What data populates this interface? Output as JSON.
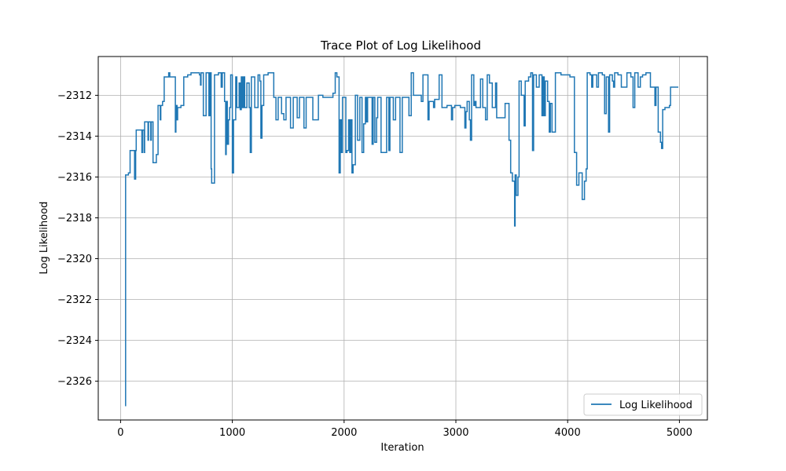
{
  "chart_data": {
    "type": "line",
    "title": "Trace Plot of Log Likelihood",
    "xlabel": "Iteration",
    "ylabel": "Log Likelihood",
    "xlim": [
      -200,
      5250
    ],
    "ylim": [
      -2327.9,
      -2310.1
    ],
    "xticks": [
      0,
      1000,
      2000,
      3000,
      4000,
      5000
    ],
    "xtick_labels": [
      "0",
      "1000",
      "2000",
      "3000",
      "4000",
      "5000"
    ],
    "yticks": [
      -2326,
      -2324,
      -2322,
      -2320,
      -2318,
      -2316,
      -2314,
      -2312
    ],
    "ytick_labels": [
      "−2326",
      "−2324",
      "−2322",
      "−2320",
      "−2318",
      "−2316",
      "−2314",
      "−2312"
    ],
    "grid": true,
    "legend": {
      "position": "lower-right",
      "entries": [
        "Log Likelihood"
      ]
    },
    "series": [
      {
        "name": "Log Likelihood",
        "color": "#1f77b4",
        "steps": [
          [
            40,
            -2327.2
          ],
          [
            45,
            -2315.9
          ],
          [
            70,
            -2315.8
          ],
          [
            85,
            -2314.7
          ],
          [
            120,
            -2314.7
          ],
          [
            125,
            -2316.1
          ],
          [
            135,
            -2314.7
          ],
          [
            140,
            -2313.7
          ],
          [
            190,
            -2314.8
          ],
          [
            195,
            -2313.7
          ],
          [
            210,
            -2314.8
          ],
          [
            215,
            -2313.3
          ],
          [
            245,
            -2314.2
          ],
          [
            250,
            -2313.3
          ],
          [
            270,
            -2314.2
          ],
          [
            275,
            -2313.3
          ],
          [
            290,
            -2315.3
          ],
          [
            320,
            -2314.9
          ],
          [
            335,
            -2312.5
          ],
          [
            355,
            -2313.2
          ],
          [
            360,
            -2312.5
          ],
          [
            375,
            -2312.3
          ],
          [
            390,
            -2311.1
          ],
          [
            430,
            -2310.9
          ],
          [
            440,
            -2311.1
          ],
          [
            490,
            -2313.8
          ],
          [
            495,
            -2312.5
          ],
          [
            505,
            -2313.2
          ],
          [
            510,
            -2312.6
          ],
          [
            540,
            -2312.5
          ],
          [
            565,
            -2311.1
          ],
          [
            600,
            -2311.0
          ],
          [
            630,
            -2310.9
          ],
          [
            705,
            -2311.0
          ],
          [
            715,
            -2311.5
          ],
          [
            720,
            -2310.9
          ],
          [
            740,
            -2313.0
          ],
          [
            765,
            -2310.9
          ],
          [
            790,
            -2313.0
          ],
          [
            800,
            -2310.9
          ],
          [
            810,
            -2315.6
          ],
          [
            815,
            -2316.3
          ],
          [
            840,
            -2311.0
          ],
          [
            875,
            -2310.9
          ],
          [
            900,
            -2311.6
          ],
          [
            910,
            -2310.9
          ],
          [
            930,
            -2312.3
          ],
          [
            940,
            -2314.9
          ],
          [
            945,
            -2312.3
          ],
          [
            955,
            -2314.4
          ],
          [
            965,
            -2313.2
          ],
          [
            975,
            -2312.6
          ],
          [
            985,
            -2311.0
          ],
          [
            1000,
            -2315.8
          ],
          [
            1010,
            -2313.2
          ],
          [
            1030,
            -2311.1
          ],
          [
            1040,
            -2312.6
          ],
          [
            1060,
            -2311.4
          ],
          [
            1070,
            -2312.7
          ],
          [
            1080,
            -2311.1
          ],
          [
            1090,
            -2312.6
          ],
          [
            1100,
            -2311.1
          ],
          [
            1110,
            -2312.6
          ],
          [
            1130,
            -2311.4
          ],
          [
            1150,
            -2312.6
          ],
          [
            1160,
            -2314.8
          ],
          [
            1170,
            -2311.1
          ],
          [
            1200,
            -2312.6
          ],
          [
            1230,
            -2311.0
          ],
          [
            1245,
            -2311.3
          ],
          [
            1255,
            -2314.1
          ],
          [
            1265,
            -2312.5
          ],
          [
            1280,
            -2311.0
          ],
          [
            1320,
            -2310.9
          ],
          [
            1370,
            -2312.1
          ],
          [
            1390,
            -2313.2
          ],
          [
            1410,
            -2312.1
          ],
          [
            1440,
            -2312.9
          ],
          [
            1460,
            -2313.2
          ],
          [
            1480,
            -2312.1
          ],
          [
            1520,
            -2313.6
          ],
          [
            1545,
            -2312.1
          ],
          [
            1580,
            -2313.1
          ],
          [
            1600,
            -2312.1
          ],
          [
            1640,
            -2313.6
          ],
          [
            1660,
            -2312.1
          ],
          [
            1720,
            -2313.2
          ],
          [
            1770,
            -2312.0
          ],
          [
            1810,
            -2312.1
          ],
          [
            1900,
            -2311.9
          ],
          [
            1920,
            -2310.9
          ],
          [
            1935,
            -2311.1
          ],
          [
            1955,
            -2315.8
          ],
          [
            1965,
            -2313.2
          ],
          [
            1975,
            -2314.8
          ],
          [
            1985,
            -2312.1
          ],
          [
            2015,
            -2314.8
          ],
          [
            2025,
            -2314.7
          ],
          [
            2040,
            -2313.2
          ],
          [
            2050,
            -2314.8
          ],
          [
            2060,
            -2313.2
          ],
          [
            2070,
            -2315.8
          ],
          [
            2080,
            -2315.4
          ],
          [
            2100,
            -2312.0
          ],
          [
            2120,
            -2314.2
          ],
          [
            2140,
            -2312.1
          ],
          [
            2160,
            -2314.8
          ],
          [
            2175,
            -2313.4
          ],
          [
            2190,
            -2312.1
          ],
          [
            2200,
            -2313.3
          ],
          [
            2210,
            -2312.1
          ],
          [
            2250,
            -2314.4
          ],
          [
            2260,
            -2312.1
          ],
          [
            2275,
            -2314.3
          ],
          [
            2290,
            -2313.1
          ],
          [
            2300,
            -2312.1
          ],
          [
            2330,
            -2314.8
          ],
          [
            2375,
            -2314.8
          ],
          [
            2380,
            -2312.1
          ],
          [
            2400,
            -2314.7
          ],
          [
            2410,
            -2312.1
          ],
          [
            2440,
            -2313.2
          ],
          [
            2460,
            -2312.1
          ],
          [
            2500,
            -2314.8
          ],
          [
            2520,
            -2312.1
          ],
          [
            2580,
            -2313.0
          ],
          [
            2600,
            -2310.9
          ],
          [
            2620,
            -2312.0
          ],
          [
            2690,
            -2312.3
          ],
          [
            2705,
            -2311.0
          ],
          [
            2750,
            -2313.2
          ],
          [
            2760,
            -2312.3
          ],
          [
            2800,
            -2312.6
          ],
          [
            2810,
            -2312.2
          ],
          [
            2850,
            -2311.0
          ],
          [
            2875,
            -2312.6
          ],
          [
            2920,
            -2312.5
          ],
          [
            2940,
            -2312.5
          ],
          [
            2960,
            -2313.2
          ],
          [
            2970,
            -2312.6
          ],
          [
            2990,
            -2312.5
          ],
          [
            3040,
            -2312.6
          ],
          [
            3060,
            -2312.6
          ],
          [
            3080,
            -2313.6
          ],
          [
            3090,
            -2312.8
          ],
          [
            3100,
            -2312.3
          ],
          [
            3120,
            -2313.2
          ],
          [
            3130,
            -2314.2
          ],
          [
            3140,
            -2311.0
          ],
          [
            3160,
            -2312.5
          ],
          [
            3170,
            -2312.3
          ],
          [
            3180,
            -2312.6
          ],
          [
            3220,
            -2311.2
          ],
          [
            3240,
            -2312.6
          ],
          [
            3265,
            -2313.2
          ],
          [
            3280,
            -2311.0
          ],
          [
            3300,
            -2311.4
          ],
          [
            3325,
            -2312.6
          ],
          [
            3355,
            -2311.4
          ],
          [
            3365,
            -2313.1
          ],
          [
            3400,
            -2313.1
          ],
          [
            3440,
            -2312.4
          ],
          [
            3475,
            -2314.2
          ],
          [
            3490,
            -2315.8
          ],
          [
            3505,
            -2316.2
          ],
          [
            3525,
            -2318.4
          ],
          [
            3530,
            -2315.9
          ],
          [
            3540,
            -2316.9
          ],
          [
            3555,
            -2316.0
          ],
          [
            3565,
            -2311.3
          ],
          [
            3585,
            -2312.0
          ],
          [
            3610,
            -2313.5
          ],
          [
            3620,
            -2311.3
          ],
          [
            3650,
            -2311.1
          ],
          [
            3670,
            -2310.9
          ],
          [
            3685,
            -2314.7
          ],
          [
            3695,
            -2311.0
          ],
          [
            3720,
            -2311.6
          ],
          [
            3745,
            -2311.0
          ],
          [
            3770,
            -2313.0
          ],
          [
            3780,
            -2311.1
          ],
          [
            3790,
            -2313.0
          ],
          [
            3800,
            -2311.3
          ],
          [
            3820,
            -2312.3
          ],
          [
            3835,
            -2313.8
          ],
          [
            3845,
            -2312.4
          ],
          [
            3860,
            -2313.8
          ],
          [
            3890,
            -2310.9
          ],
          [
            3940,
            -2311.0
          ],
          [
            4020,
            -2311.1
          ],
          [
            4060,
            -2314.8
          ],
          [
            4080,
            -2316.4
          ],
          [
            4100,
            -2315.8
          ],
          [
            4130,
            -2317.1
          ],
          [
            4150,
            -2316.2
          ],
          [
            4165,
            -2315.6
          ],
          [
            4175,
            -2310.9
          ],
          [
            4200,
            -2311.0
          ],
          [
            4215,
            -2311.6
          ],
          [
            4225,
            -2311.0
          ],
          [
            4260,
            -2311.6
          ],
          [
            4275,
            -2310.9
          ],
          [
            4310,
            -2311.0
          ],
          [
            4330,
            -2312.9
          ],
          [
            4345,
            -2311.1
          ],
          [
            4365,
            -2313.8
          ],
          [
            4375,
            -2311.0
          ],
          [
            4400,
            -2311.3
          ],
          [
            4410,
            -2311.6
          ],
          [
            4420,
            -2310.9
          ],
          [
            4450,
            -2311.0
          ],
          [
            4480,
            -2311.6
          ],
          [
            4530,
            -2310.9
          ],
          [
            4565,
            -2311.1
          ],
          [
            4585,
            -2312.6
          ],
          [
            4600,
            -2310.9
          ],
          [
            4630,
            -2311.6
          ],
          [
            4650,
            -2311.1
          ],
          [
            4670,
            -2311.0
          ],
          [
            4700,
            -2310.9
          ],
          [
            4740,
            -2311.6
          ],
          [
            4780,
            -2312.5
          ],
          [
            4790,
            -2311.6
          ],
          [
            4810,
            -2313.8
          ],
          [
            4830,
            -2314.3
          ],
          [
            4840,
            -2314.6
          ],
          [
            4850,
            -2312.7
          ],
          [
            4870,
            -2312.6
          ],
          [
            4910,
            -2312.5
          ],
          [
            4920,
            -2311.6
          ],
          [
            4990,
            -2311.6
          ]
        ]
      }
    ]
  }
}
